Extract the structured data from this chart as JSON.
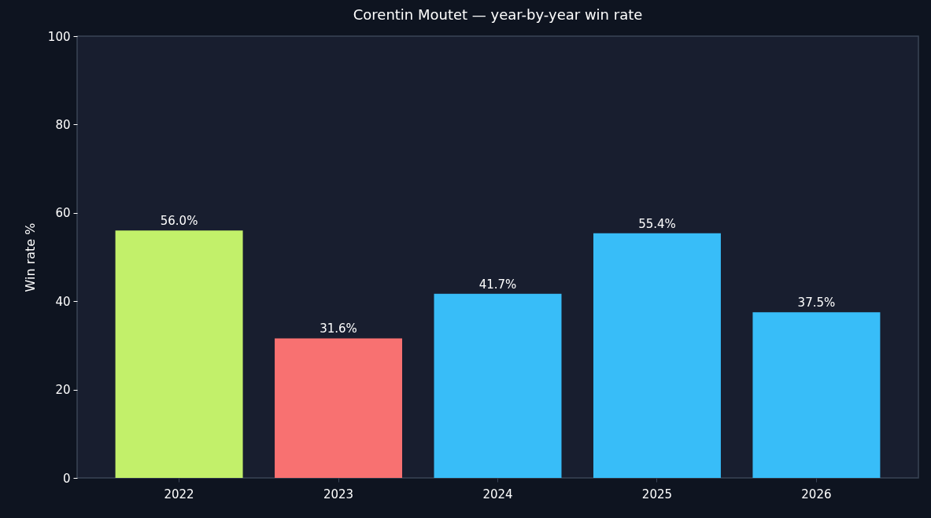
{
  "chart_data": {
    "type": "bar",
    "title": "Corentin Moutet — year-by-year win rate",
    "ylabel": "Win rate %",
    "categories": [
      "2022",
      "2023",
      "2024",
      "2025",
      "2026"
    ],
    "values": [
      56.0,
      31.6,
      41.7,
      55.4,
      37.5
    ],
    "colors": [
      "#c2f06a",
      "#f87171",
      "#38bdf8",
      "#38bdf8",
      "#38bdf8"
    ],
    "value_labels": [
      "56.0%",
      "31.6%",
      "41.7%",
      "55.4%",
      "37.5%"
    ],
    "ylim": [
      0,
      100
    ],
    "yticks": [
      0,
      20,
      40,
      60,
      80,
      100
    ],
    "grid": false
  }
}
